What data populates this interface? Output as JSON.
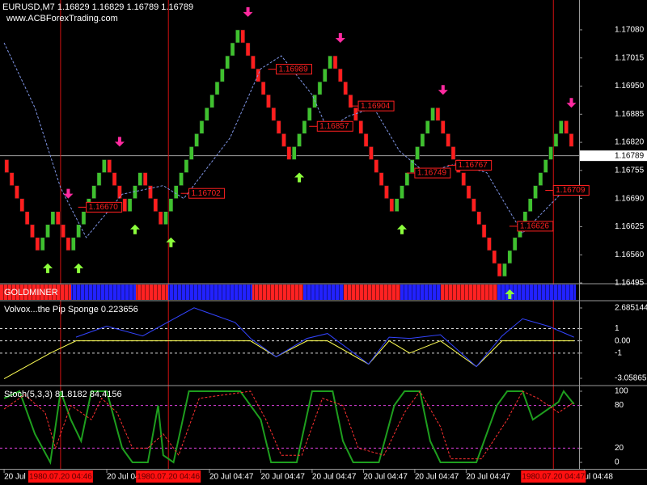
{
  "chart_data": [
    {
      "type": "renko",
      "title": "EURUSD,M7  1.16829 1.16829 1.16789 1.16789",
      "subtitle": "www.ACBForexTrading.com",
      "values": [
        1.1678,
        1.1675,
        1.1672,
        1.1669,
        1.1666,
        1.1663,
        1.166,
        1.1657,
        1.166,
        1.1663,
        1.1666,
        1.1663,
        1.166,
        1.1657,
        1.166,
        1.1663,
        1.1666,
        1.1669,
        1.1672,
        1.1675,
        1.1678,
        1.1675,
        1.1672,
        1.1669,
        1.1666,
        1.1669,
        1.1672,
        1.1675,
        1.1672,
        1.1669,
        1.1666,
        1.1663,
        1.1666,
        1.1669,
        1.1672,
        1.1675,
        1.1678,
        1.1681,
        1.1684,
        1.1687,
        1.169,
        1.1693,
        1.1696,
        1.1699,
        1.1702,
        1.1705,
        1.1708,
        1.1705,
        1.1702,
        1.1699,
        1.1696,
        1.1693,
        1.169,
        1.1687,
        1.1684,
        1.1681,
        1.1678,
        1.1681,
        1.1684,
        1.1687,
        1.169,
        1.1693,
        1.1696,
        1.1699,
        1.1702,
        1.1699,
        1.1696,
        1.1693,
        1.169,
        1.1687,
        1.1684,
        1.1681,
        1.1678,
        1.1675,
        1.1672,
        1.1669,
        1.1666,
        1.1669,
        1.1672,
        1.1675,
        1.1678,
        1.1681,
        1.1684,
        1.1687,
        1.169,
        1.1687,
        1.1684,
        1.1681,
        1.1678,
        1.1675,
        1.1672,
        1.1669,
        1.1666,
        1.1663,
        1.166,
        1.1657,
        1.1654,
        1.1651,
        1.1654,
        1.1657,
        1.166,
        1.1663,
        1.1666,
        1.1669,
        1.1672,
        1.1675,
        1.1678,
        1.1681,
        1.1684,
        1.1687,
        1.1684,
        1.1681
      ],
      "up_color": "#3fc12f",
      "down_color": "#ff1e1e",
      "series": [
        {
          "color": "#7f95e6",
          "dash": true,
          "x": [
            0,
            6,
            11,
            16,
            23,
            31,
            35,
            44,
            50,
            54,
            60,
            63,
            67,
            72,
            77,
            82,
            88,
            94,
            101,
            110
          ],
          "values": [
            1.1705,
            1.169,
            1.16715,
            1.166,
            1.167,
            1.1672,
            1.1669,
            1.1683,
            1.1699,
            1.1702,
            1.1693,
            1.1685,
            1.1688,
            1.169,
            1.168,
            1.1675,
            1.1677,
            1.1675,
            1.1661,
            1.1672
          ]
        }
      ],
      "buy": {
        "color": "#8cff3c",
        "x": [
          8,
          14,
          25,
          32,
          57,
          77,
          98
        ],
        "values": [
          1.1654,
          1.1654,
          1.1663,
          1.166,
          1.1675,
          1.1663,
          1.1648
        ]
      },
      "sell": {
        "color": "#ff2aa0",
        "x": [
          12,
          22,
          47,
          65,
          85,
          110
        ],
        "values": [
          1.1669,
          1.1681,
          1.1711,
          1.1705,
          1.1693,
          1.169
        ]
      },
      "annotations": [
        {
          "x": 16,
          "value": 1.1667,
          "label": "1.16670"
        },
        {
          "x": 36,
          "value": 1.16702,
          "label": "1.16702"
        },
        {
          "x": 53,
          "value": 1.16989,
          "label": "1.16989"
        },
        {
          "x": 61,
          "value": 1.16857,
          "label": "1.16857"
        },
        {
          "x": 69,
          "value": 1.16904,
          "label": "1.16904"
        },
        {
          "x": 80,
          "value": 1.16749,
          "label": "1.16749"
        },
        {
          "x": 88,
          "value": 1.16767,
          "label": "1.16767"
        },
        {
          "x": 100,
          "value": 1.16626,
          "label": "1.16626"
        },
        {
          "x": 107,
          "value": 1.16709,
          "label": "1.16709"
        }
      ],
      "current_price": 1.16789,
      "xlim": [
        -0.8,
        112
      ],
      "xticks": [
        {
          "value": 0,
          "label": "20 Jul 1"
        },
        {
          "value": 20,
          "label": "20 Jul 04:47"
        },
        {
          "value": 40,
          "label": "20 Jul 04:47"
        },
        {
          "value": 50,
          "label": "20 Jul 04:47"
        },
        {
          "value": 60,
          "label": "20 Jul 04:47"
        },
        {
          "value": 70,
          "label": "20 Jul 04:47"
        },
        {
          "value": 80,
          "label": "20 Jul 04:47"
        },
        {
          "value": 90,
          "label": "20 Jul 04:47"
        },
        {
          "value": 113,
          "label": "ul 04:48"
        }
      ],
      "separators": {
        "x": [
          11,
          32,
          107
        ],
        "labels": [
          "1980.07.20 04:46",
          "1980.07.20 04:46",
          "1980.07.20 04:47"
        ]
      },
      "ylim": [
        1.16495,
        1.17149
      ],
      "yticks": [
        {
          "value": 1.1708,
          "label": "1.17080"
        },
        1.17015,
        {
          "value": 1.1695,
          "label": "1.16950"
        },
        1.16885,
        {
          "value": 1.1682,
          "label": "1.16820"
        },
        1.16755,
        {
          "value": 1.1669,
          "label": "1.16690"
        },
        1.16625,
        {
          "value": 1.1656,
          "label": "1.16560"
        },
        1.16495
      ]
    },
    {
      "type": "strip",
      "title": "GOLDMINER"
    },
    {
      "type": "line",
      "title": "Volvox...the Pip Sponge 0.223656",
      "x": [
        0,
        9,
        14,
        20,
        27,
        37,
        45,
        48,
        53,
        59,
        63,
        71,
        75,
        79,
        85,
        92,
        97,
        101,
        106,
        111
      ],
      "series": [
        {
          "color": "#ffff55",
          "values": [
            -3.1,
            -1,
            0,
            0,
            0,
            0,
            0,
            0,
            -1.3,
            0,
            0,
            -1.9,
            0,
            -1,
            0,
            -2.1,
            0,
            0,
            0,
            0
          ]
        },
        {
          "color": "#3344ff",
          "values": [
            null,
            null,
            0.3,
            1.2,
            0.4,
            2.7,
            1.5,
            0.2,
            -1.3,
            0.2,
            0.6,
            -1.9,
            0.3,
            0.2,
            0.5,
            -2.1,
            0.4,
            1.8,
            1.2,
            0.3
          ]
        }
      ],
      "ylim": [
        -3.587,
        3.213
      ],
      "yticks": [
        2.685144,
        1,
        {
          "value": 0,
          "label": "0.00"
        },
        -1,
        -3.05865
      ],
      "grid": true,
      "grid_color": "#d8d8d8"
    },
    {
      "type": "line",
      "title": "Stoch(5,3,3) 81.8182 84.4156",
      "series": [
        {
          "color": "#1e9e1e",
          "width": 2,
          "x": [
            0,
            3,
            6,
            9,
            11,
            13,
            15,
            17,
            20,
            23,
            25,
            28,
            30,
            31,
            33,
            36,
            46,
            50,
            52,
            57,
            60,
            64,
            66,
            68,
            73,
            76,
            78,
            81,
            83,
            85,
            92,
            96,
            98,
            101,
            103,
            105,
            108,
            109,
            111
          ],
          "values": [
            90,
            100,
            40,
            0,
            100,
            60,
            30,
            100,
            100,
            20,
            0,
            0,
            80,
            10,
            0,
            100,
            100,
            60,
            0,
            0,
            100,
            100,
            30,
            0,
            0,
            80,
            100,
            100,
            30,
            0,
            0,
            80,
            100,
            100,
            60,
            70,
            85,
            100,
            81.8182
          ]
        },
        {
          "color": "#ff3030",
          "dash": true,
          "x": [
            0,
            4,
            8,
            10,
            13,
            17,
            19,
            22,
            25,
            28,
            31,
            34,
            38,
            48,
            51,
            54,
            58,
            62,
            66,
            69,
            74,
            78,
            81,
            85,
            87,
            93,
            98,
            101,
            104,
            108,
            111
          ],
          "values": [
            75,
            95,
            70,
            20,
            80,
            60,
            90,
            70,
            20,
            20,
            40,
            10,
            90,
            100,
            60,
            10,
            10,
            90,
            80,
            20,
            10,
            70,
            100,
            50,
            5,
            5,
            60,
            100,
            90,
            70,
            84.4156
          ]
        }
      ],
      "ylim": [
        -9.1,
        106.8
      ],
      "yticks": [
        100,
        80,
        20,
        0
      ],
      "grid": true,
      "grid_color": "#e040e0"
    }
  ]
}
